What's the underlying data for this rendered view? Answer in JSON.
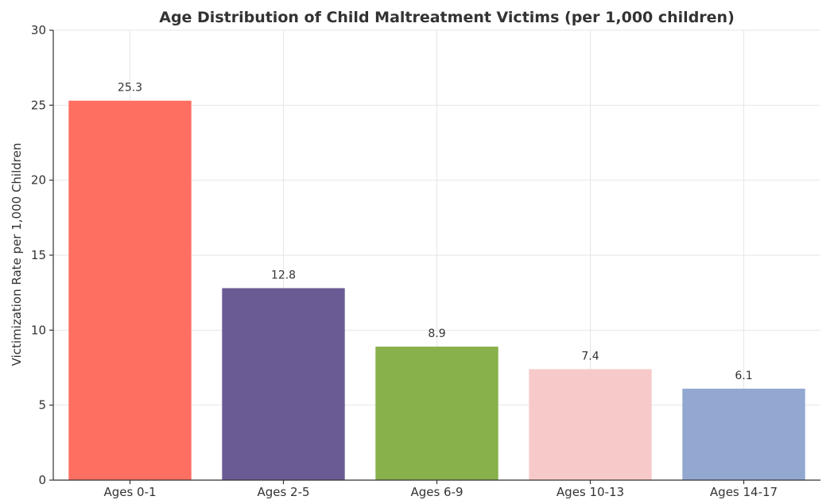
{
  "chart_data": {
    "type": "bar",
    "title": "Age Distribution of Child Maltreatment Victims (per 1,000 children)",
    "xlabel": "",
    "ylabel": "Victimization Rate per 1,000 Children",
    "categories": [
      "Ages 0-1",
      "Ages 2-5",
      "Ages 6-9",
      "Ages 10-13",
      "Ages 14-17"
    ],
    "values": [
      25.3,
      12.8,
      8.9,
      7.4,
      6.1
    ],
    "value_labels": [
      "25.3",
      "12.8",
      "8.9",
      "7.4",
      "6.1"
    ],
    "colors": [
      "#FF6F61",
      "#6B5B95",
      "#88B04B",
      "#F7CAC9",
      "#92A8D1"
    ],
    "ylim": [
      0,
      30
    ],
    "yticks": [
      0,
      5,
      10,
      15,
      20,
      25,
      30
    ],
    "ytick_labels": [
      "0",
      "5",
      "10",
      "15",
      "20",
      "25",
      "30"
    ],
    "grid": true,
    "legend": "none"
  }
}
